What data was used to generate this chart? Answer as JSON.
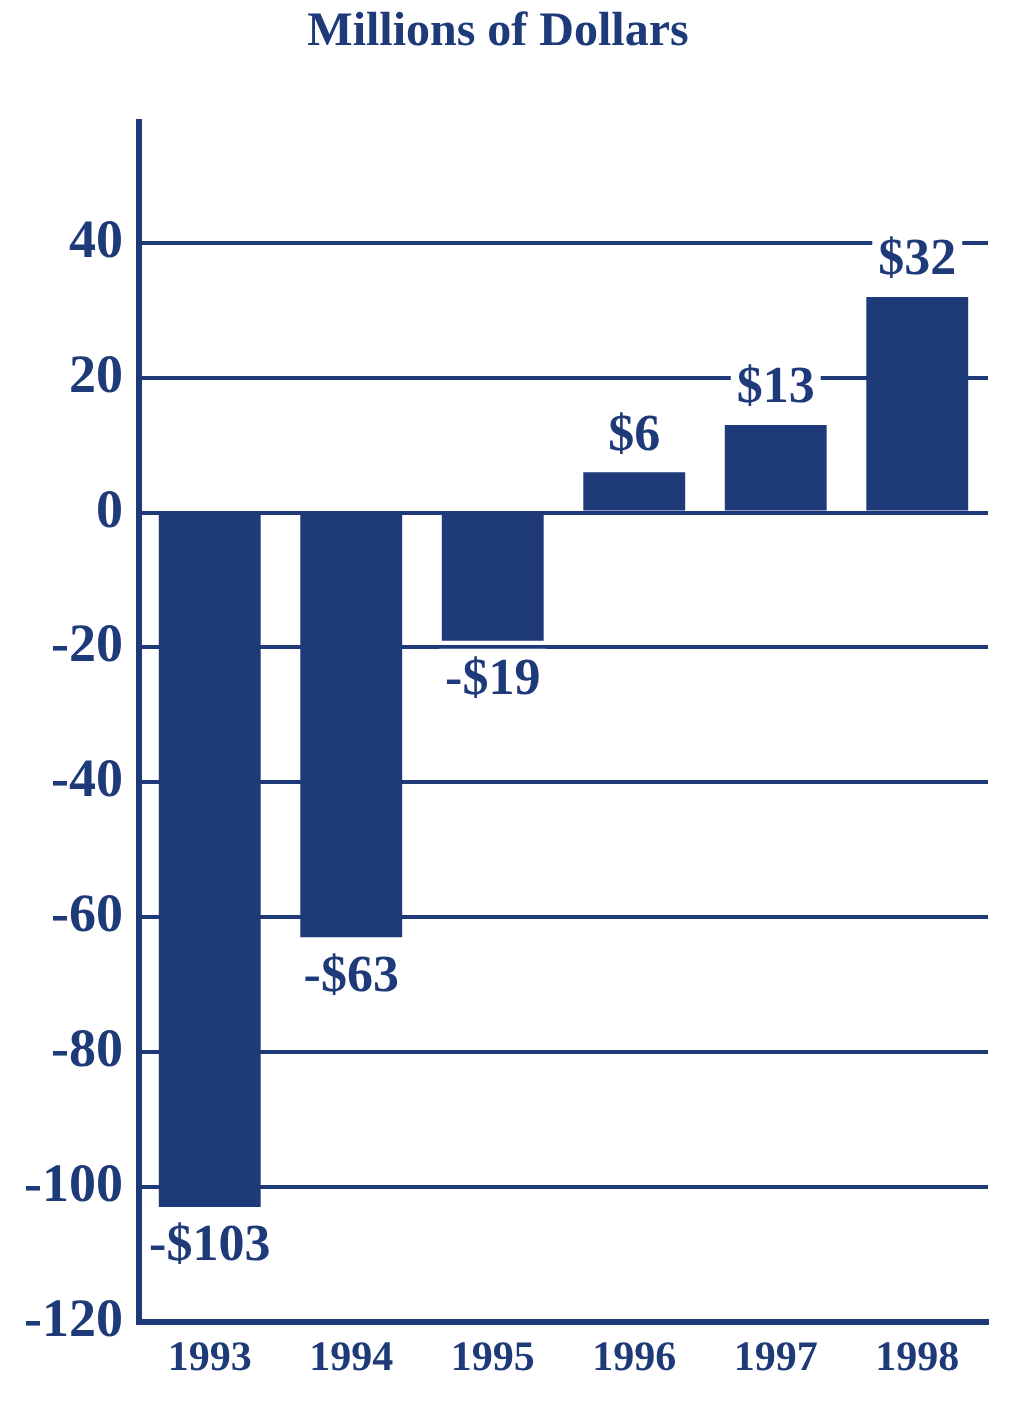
{
  "chart_data": {
    "type": "bar",
    "title": "Millions of Dollars",
    "categories": [
      "1993",
      "1994",
      "1995",
      "1996",
      "1997",
      "1998"
    ],
    "values": [
      -103,
      -63,
      -19,
      6,
      13,
      32
    ],
    "value_labels": [
      "-$103",
      "-$63",
      "-$19",
      "$6",
      "$13",
      "$32"
    ],
    "color": "#1f3a78",
    "ylim": [
      -120,
      58
    ],
    "yticks": [
      -120,
      -100,
      -80,
      -60,
      -40,
      -20,
      0,
      20,
      40
    ],
    "grid": "y"
  }
}
